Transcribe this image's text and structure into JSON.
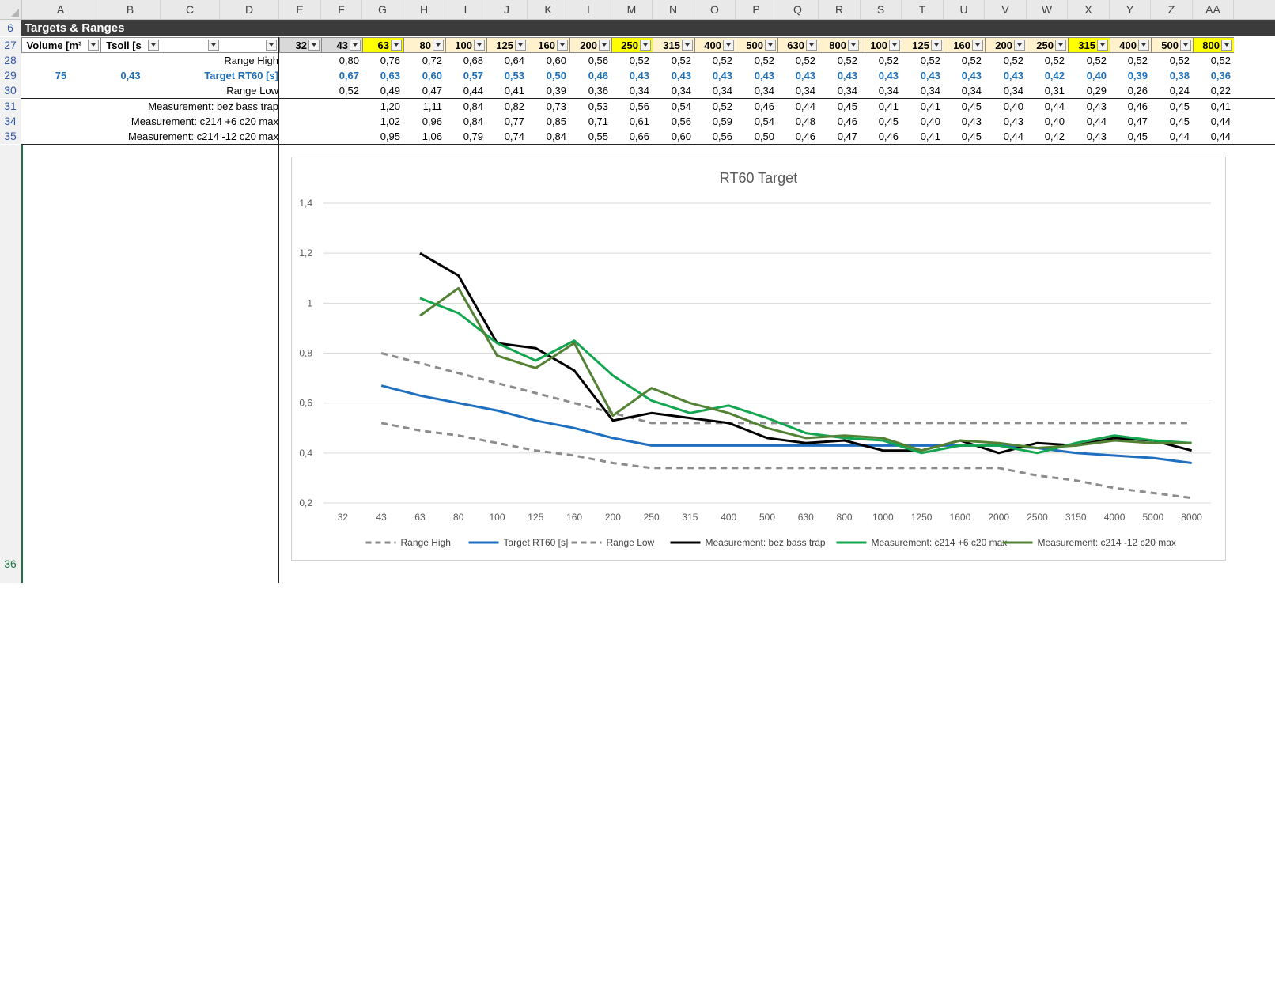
{
  "columns": [
    "A",
    "B",
    "C",
    "D",
    "E",
    "F",
    "G",
    "H",
    "I",
    "J",
    "K",
    "L",
    "M",
    "N",
    "O",
    "P",
    "Q",
    "R",
    "S",
    "T",
    "U",
    "V",
    "W",
    "X",
    "Y",
    "Z",
    "AA"
  ],
  "rows": {
    "r6": "6",
    "r27": "27",
    "r28": "28",
    "r29": "29",
    "r30": "30",
    "r31": "31",
    "r34": "34",
    "r35": "35",
    "r36": "36"
  },
  "section_title": "Targets & Ranges",
  "header": {
    "volume": "Volume [m³",
    "tsoll": "Tsoll [s",
    "c": "",
    "d": ""
  },
  "freq_headers": [
    "32",
    "43",
    "63",
    "80",
    "100",
    "125",
    "160",
    "200",
    "250",
    "315",
    "400",
    "500",
    "630",
    "800",
    "100",
    "125",
    "160",
    "200",
    "250",
    "315",
    "400",
    "500",
    "800"
  ],
  "highlight_cols": [
    2,
    8,
    19,
    22
  ],
  "row_labels": {
    "range_high": "Range High",
    "target": "Target RT60 [s]",
    "range_low": "Range Low",
    "m1": "Measurement: bez bass trap",
    "m2": "Measurement: c214 +6 c20 max",
    "m3": "Measurement: c214 -12 c20 max"
  },
  "volume_value": "75",
  "tsoll_value": "0,43",
  "table": {
    "range_high": [
      "",
      "0,80",
      "0,76",
      "0,72",
      "0,68",
      "0,64",
      "0,60",
      "0,56",
      "0,52",
      "0,52",
      "0,52",
      "0,52",
      "0,52",
      "0,52",
      "0,52",
      "0,52",
      "0,52",
      "0,52",
      "0,52",
      "0,52",
      "0,52",
      "0,52",
      "0,52"
    ],
    "target": [
      "",
      "0,67",
      "0,63",
      "0,60",
      "0,57",
      "0,53",
      "0,50",
      "0,46",
      "0,43",
      "0,43",
      "0,43",
      "0,43",
      "0,43",
      "0,43",
      "0,43",
      "0,43",
      "0,43",
      "0,43",
      "0,42",
      "0,40",
      "0,39",
      "0,38",
      "0,36"
    ],
    "range_low": [
      "",
      "0,52",
      "0,49",
      "0,47",
      "0,44",
      "0,41",
      "0,39",
      "0,36",
      "0,34",
      "0,34",
      "0,34",
      "0,34",
      "0,34",
      "0,34",
      "0,34",
      "0,34",
      "0,34",
      "0,34",
      "0,31",
      "0,29",
      "0,26",
      "0,24",
      "0,22"
    ],
    "m1": [
      "",
      "",
      "1,20",
      "1,11",
      "0,84",
      "0,82",
      "0,73",
      "0,53",
      "0,56",
      "0,54",
      "0,52",
      "0,46",
      "0,44",
      "0,45",
      "0,41",
      "0,41",
      "0,45",
      "0,40",
      "0,44",
      "0,43",
      "0,46",
      "0,45",
      "0,41"
    ],
    "m2": [
      "",
      "",
      "1,02",
      "0,96",
      "0,84",
      "0,77",
      "0,85",
      "0,71",
      "0,61",
      "0,56",
      "0,59",
      "0,54",
      "0,48",
      "0,46",
      "0,45",
      "0,40",
      "0,43",
      "0,43",
      "0,40",
      "0,44",
      "0,47",
      "0,45",
      "0,44"
    ],
    "m3": [
      "",
      "",
      "0,95",
      "1,06",
      "0,79",
      "0,74",
      "0,84",
      "0,55",
      "0,66",
      "0,60",
      "0,56",
      "0,50",
      "0,46",
      "0,47",
      "0,46",
      "0,41",
      "0,45",
      "0,44",
      "0,42",
      "0,43",
      "0,45",
      "0,44",
      "0,44"
    ]
  },
  "chart_data": {
    "type": "line",
    "title": "RT60 Target",
    "categories": [
      "32",
      "43",
      "63",
      "80",
      "100",
      "125",
      "160",
      "200",
      "250",
      "315",
      "400",
      "500",
      "630",
      "800",
      "1000",
      "1250",
      "1600",
      "2000",
      "2500",
      "3150",
      "4000",
      "5000",
      "8000"
    ],
    "ylim": [
      0.2,
      1.4
    ],
    "yticks": [
      "0,2",
      "0,4",
      "0,6",
      "0,8",
      "1",
      "1,2",
      "1,4"
    ],
    "grid": true,
    "legend_position": "bottom",
    "series": [
      {
        "name": "Range High",
        "color": "#8c8c8c",
        "dashed": true,
        "values": [
          null,
          0.8,
          0.76,
          0.72,
          0.68,
          0.64,
          0.6,
          0.56,
          0.52,
          0.52,
          0.52,
          0.52,
          0.52,
          0.52,
          0.52,
          0.52,
          0.52,
          0.52,
          0.52,
          0.52,
          0.52,
          0.52,
          0.52
        ]
      },
      {
        "name": "Target RT60 [s]",
        "color": "#1f6fc0",
        "dashed": false,
        "values": [
          null,
          0.67,
          0.63,
          0.6,
          0.57,
          0.53,
          0.5,
          0.46,
          0.43,
          0.43,
          0.43,
          0.43,
          0.43,
          0.43,
          0.43,
          0.43,
          0.43,
          0.43,
          0.42,
          0.4,
          0.39,
          0.38,
          0.36
        ]
      },
      {
        "name": "Range Low",
        "color": "#8c8c8c",
        "dashed": true,
        "values": [
          null,
          0.52,
          0.49,
          0.47,
          0.44,
          0.41,
          0.39,
          0.36,
          0.34,
          0.34,
          0.34,
          0.34,
          0.34,
          0.34,
          0.34,
          0.34,
          0.34,
          0.34,
          0.31,
          0.29,
          0.26,
          0.24,
          0.22
        ]
      },
      {
        "name": "Measurement: bez bass trap",
        "color": "#000000",
        "dashed": false,
        "values": [
          null,
          null,
          1.2,
          1.11,
          0.84,
          0.82,
          0.73,
          0.53,
          0.56,
          0.54,
          0.52,
          0.46,
          0.44,
          0.45,
          0.41,
          0.41,
          0.45,
          0.4,
          0.44,
          0.43,
          0.46,
          0.45,
          0.41
        ]
      },
      {
        "name": "Measurement: c214 +6 c20 max",
        "color": "#13a550",
        "dashed": false,
        "values": [
          null,
          null,
          1.02,
          0.96,
          0.84,
          0.77,
          0.85,
          0.71,
          0.61,
          0.56,
          0.59,
          0.54,
          0.48,
          0.46,
          0.45,
          0.4,
          0.43,
          0.43,
          0.4,
          0.44,
          0.47,
          0.45,
          0.44
        ]
      },
      {
        "name": "Measurement: c214 -12 c20 max",
        "color": "#548235",
        "dashed": false,
        "values": [
          null,
          null,
          0.95,
          1.06,
          0.79,
          0.74,
          0.84,
          0.55,
          0.66,
          0.6,
          0.56,
          0.5,
          0.46,
          0.47,
          0.46,
          0.41,
          0.45,
          0.44,
          0.42,
          0.43,
          0.45,
          0.44,
          0.44
        ]
      }
    ]
  }
}
